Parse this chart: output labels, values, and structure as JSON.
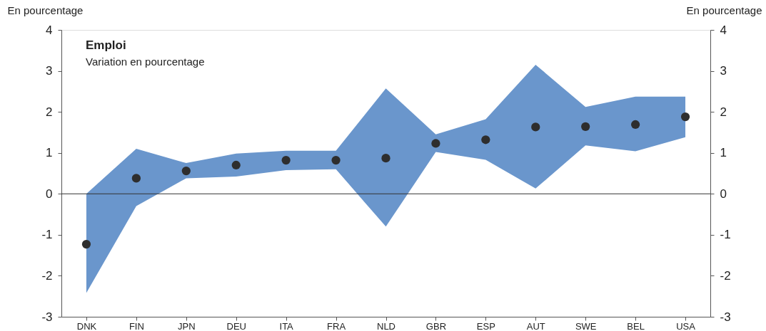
{
  "chart_data": {
    "type": "scatter",
    "title": "Emploi",
    "subtitle": "Variation en pourcentage",
    "ylabel": "En pourcentage",
    "y2label": "En pourcentage",
    "categories": [
      "DNK",
      "FIN",
      "JPN",
      "DEU",
      "ITA",
      "FRA",
      "NLD",
      "GBR",
      "ESP",
      "AUT",
      "SWE",
      "BEL",
      "USA"
    ],
    "series": [
      {
        "type": "area",
        "color": "#6a96cc",
        "values": [
          null,
          null,
          null,
          null,
          null,
          null,
          null,
          null,
          null,
          null,
          null,
          null,
          null
        ],
        "lower": [
          -2.42,
          -0.3,
          0.38,
          0.42,
          0.58,
          0.6,
          -0.8,
          1.02,
          0.83,
          0.13,
          1.18,
          1.04,
          1.38
        ],
        "upper": [
          0.0,
          1.1,
          0.75,
          0.98,
          1.05,
          1.05,
          2.57,
          1.45,
          1.82,
          3.15,
          2.12,
          2.37,
          2.37
        ]
      },
      {
        "color": "#2e2e2e",
        "values": [
          -1.23,
          0.38,
          0.56,
          0.7,
          0.82,
          0.82,
          0.87,
          1.23,
          1.32,
          1.63,
          1.64,
          1.69,
          1.88
        ]
      }
    ],
    "ylim": [
      -3,
      4
    ],
    "yticks": [
      -3,
      -2,
      -1,
      0,
      1,
      2,
      3,
      4
    ],
    "y2lim": [
      -3,
      4
    ],
    "y2ticks": [
      -3,
      -2,
      -1,
      0,
      1,
      2,
      3,
      4
    ],
    "ref_lines": [
      {
        "axis": "y",
        "value": 0,
        "color": "#333333"
      }
    ],
    "marker": "circle",
    "grid": false,
    "legend": false
  }
}
